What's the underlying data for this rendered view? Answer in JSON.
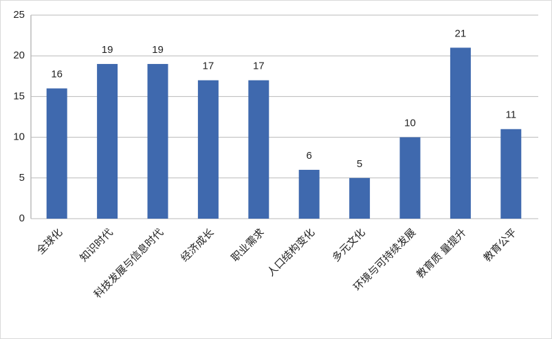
{
  "chart_data": {
    "type": "bar",
    "categories": [
      "全球化",
      "知识时代",
      "科技发展与信息时代",
      "经济成长",
      "职业需求",
      "人口结构变化",
      "多元文化",
      "环境与可持续发展",
      "教育质 量提升",
      "教育公平"
    ],
    "values": [
      16,
      19,
      19,
      17,
      17,
      6,
      5,
      10,
      21,
      11
    ],
    "color": "#3f69ae",
    "ylim": [
      0,
      25
    ],
    "yticks": [
      0,
      5,
      10,
      15,
      20,
      25
    ],
    "grid": true
  }
}
